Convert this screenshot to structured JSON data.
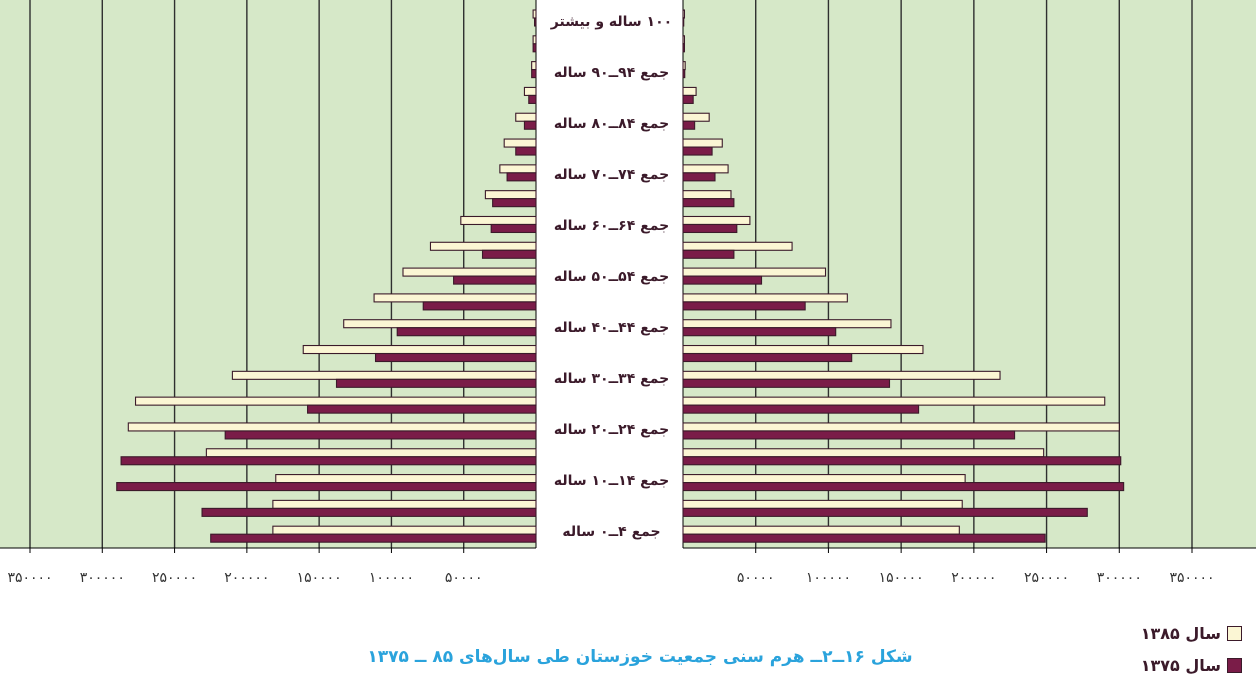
{
  "chart_data": {
    "type": "bar",
    "orientation": "horizontal-pyramid",
    "caption": "شکل ۱۶ــ۲ــ هرم سنی جمعیت خوزستان طی سال‌های ۸۵ ــ ۱۳۷۵",
    "age_labels": [
      "۱۰۰ ساله و بیشتر",
      "جمع ۹۴ــ۹۰ ساله",
      "جمع ۸۴ــ۸۰ ساله",
      "جمع ۷۴ــ۷۰ ساله",
      "جمع ۶۴ــ۶۰ ساله",
      "جمع ۵۴ــ۵۰ ساله",
      "جمع ۴۴ــ۴۰ ساله",
      "جمع ۳۴ــ۳۰ ساله",
      "جمع ۲۴ــ۲۰ ساله",
      "جمع ۱۴ــ۱۰ ساله",
      "جمع ۴ــ۰ ساله"
    ],
    "age_groups_count": 21,
    "left_xticks": [
      "۵۰۰۰۰",
      "۱۰۰۰۰۰",
      "۱۵۰۰۰۰",
      "۲۰۰۰۰۰",
      "۲۵۰۰۰۰",
      "۳۰۰۰۰۰",
      "۳۵۰۰۰۰"
    ],
    "right_xticks": [
      "۵۰۰۰۰",
      "۱۰۰۰۰۰",
      "۱۵۰۰۰۰",
      "۲۰۰۰۰۰",
      "۲۵۰۰۰۰",
      "۳۰۰۰۰۰",
      "۳۵۰۰۰۰"
    ],
    "xlim": [
      0,
      350000
    ],
    "grid": true,
    "legend_position": "bottom-right",
    "series": [
      {
        "name": "سال ۱۳۸۵",
        "color": "#fbf6d4",
        "left": [
          2000,
          2000,
          3000,
          8000,
          14000,
          22000,
          25000,
          35000,
          52000,
          73000,
          92000,
          112000,
          133000,
          161000,
          210000,
          277000,
          282000,
          228000,
          180000,
          182000,
          182000
        ],
        "right": [
          1000,
          1000,
          1500,
          9000,
          18000,
          27000,
          31000,
          33000,
          46000,
          75000,
          98000,
          113000,
          143000,
          165000,
          218000,
          290000,
          300000,
          248000,
          194000,
          192000,
          190000
        ]
      },
      {
        "name": "سال ۱۳۷۵",
        "color": "#7a1c48",
        "left": [
          1000,
          2000,
          3000,
          5000,
          8000,
          14000,
          20000,
          30000,
          31000,
          37000,
          57000,
          78000,
          96000,
          111000,
          138000,
          158000,
          215000,
          287000,
          290000,
          231000,
          225000
        ],
        "right": [
          500,
          1000,
          1200,
          7000,
          8000,
          20000,
          22000,
          35000,
          37000,
          35000,
          54000,
          84000,
          105000,
          116000,
          142000,
          162000,
          228000,
          301000,
          303000,
          278000,
          249000
        ]
      }
    ]
  },
  "legend": {
    "items": [
      {
        "label": "سال ۱۳۸۵",
        "color": "#fbf6d4"
      },
      {
        "label": "سال ۱۳۷۵",
        "color": "#7a1c48"
      }
    ]
  },
  "colors": {
    "plot_bg": "#d6e8c8",
    "grid": "#2f2f2f",
    "bar_border": "#3b1a2a",
    "caption": "#2aa3dc"
  }
}
